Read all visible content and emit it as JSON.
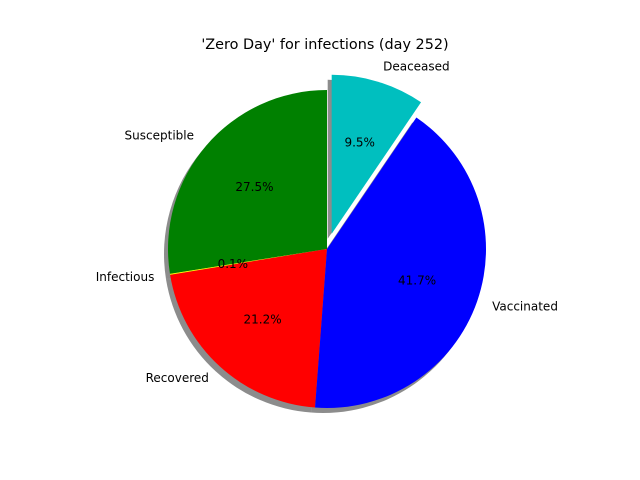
{
  "chart_data": {
    "type": "pie",
    "title": "'Zero Day' for infections (day 252)",
    "slices": [
      {
        "label": "Susceptible",
        "value": 27.5,
        "pct_label": "27.5%",
        "color": "#008000",
        "explode": false
      },
      {
        "label": "Infectious",
        "value": 0.1,
        "pct_label": "0.1%",
        "color": "#ffff00",
        "explode": false
      },
      {
        "label": "Recovered",
        "value": 21.2,
        "pct_label": "21.2%",
        "color": "#ff0000",
        "explode": false
      },
      {
        "label": "Vaccinated",
        "value": 41.7,
        "pct_label": "41.7%",
        "color": "#0000ff",
        "explode": false
      },
      {
        "label": "Deaceased",
        "value": 9.5,
        "pct_label": "9.5%",
        "color": "#00bfbf",
        "explode": true
      }
    ],
    "start_angle_deg": 90,
    "direction": "counterclockwise",
    "shadow": true,
    "legend": "none"
  }
}
